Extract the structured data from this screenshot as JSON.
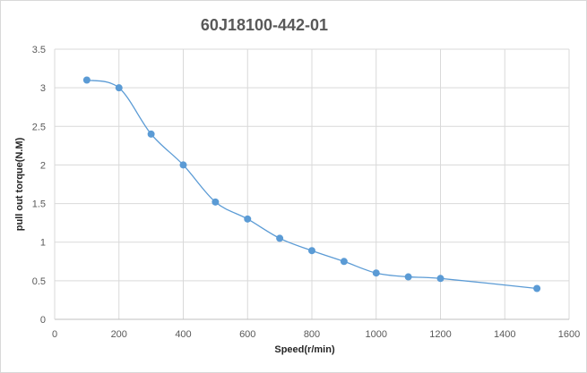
{
  "chart_data": {
    "type": "line",
    "title": "60J18100-442-01",
    "xlabel": "Speed(r/min)",
    "ylabel": "pull out torque(N.M)",
    "xlim": [
      0,
      1600
    ],
    "ylim": [
      0,
      3.5
    ],
    "x_ticks": [
      0,
      200,
      400,
      600,
      800,
      1000,
      1200,
      1400,
      1600
    ],
    "y_ticks": [
      0,
      0.5,
      1,
      1.5,
      2,
      2.5,
      3,
      3.5
    ],
    "x_tick_labels": [
      "0",
      "200",
      "400",
      "600",
      "800",
      "1000",
      "1200",
      "1400",
      "1600"
    ],
    "y_tick_labels": [
      "0",
      "0.5",
      "1",
      "1.5",
      "2",
      "2.5",
      "3",
      "3.5"
    ],
    "grid": "horizontal",
    "legend": "none",
    "series": [
      {
        "color": "#5b9bd5",
        "smooth": true,
        "x": [
          100,
          200,
          300,
          400,
          500,
          600,
          700,
          800,
          900,
          1000,
          1100,
          1200,
          1500
        ],
        "y": [
          3.1,
          3.0,
          2.4,
          2.0,
          1.52,
          1.3,
          1.05,
          0.89,
          0.75,
          0.6,
          0.55,
          0.53,
          0.4
        ]
      }
    ]
  }
}
